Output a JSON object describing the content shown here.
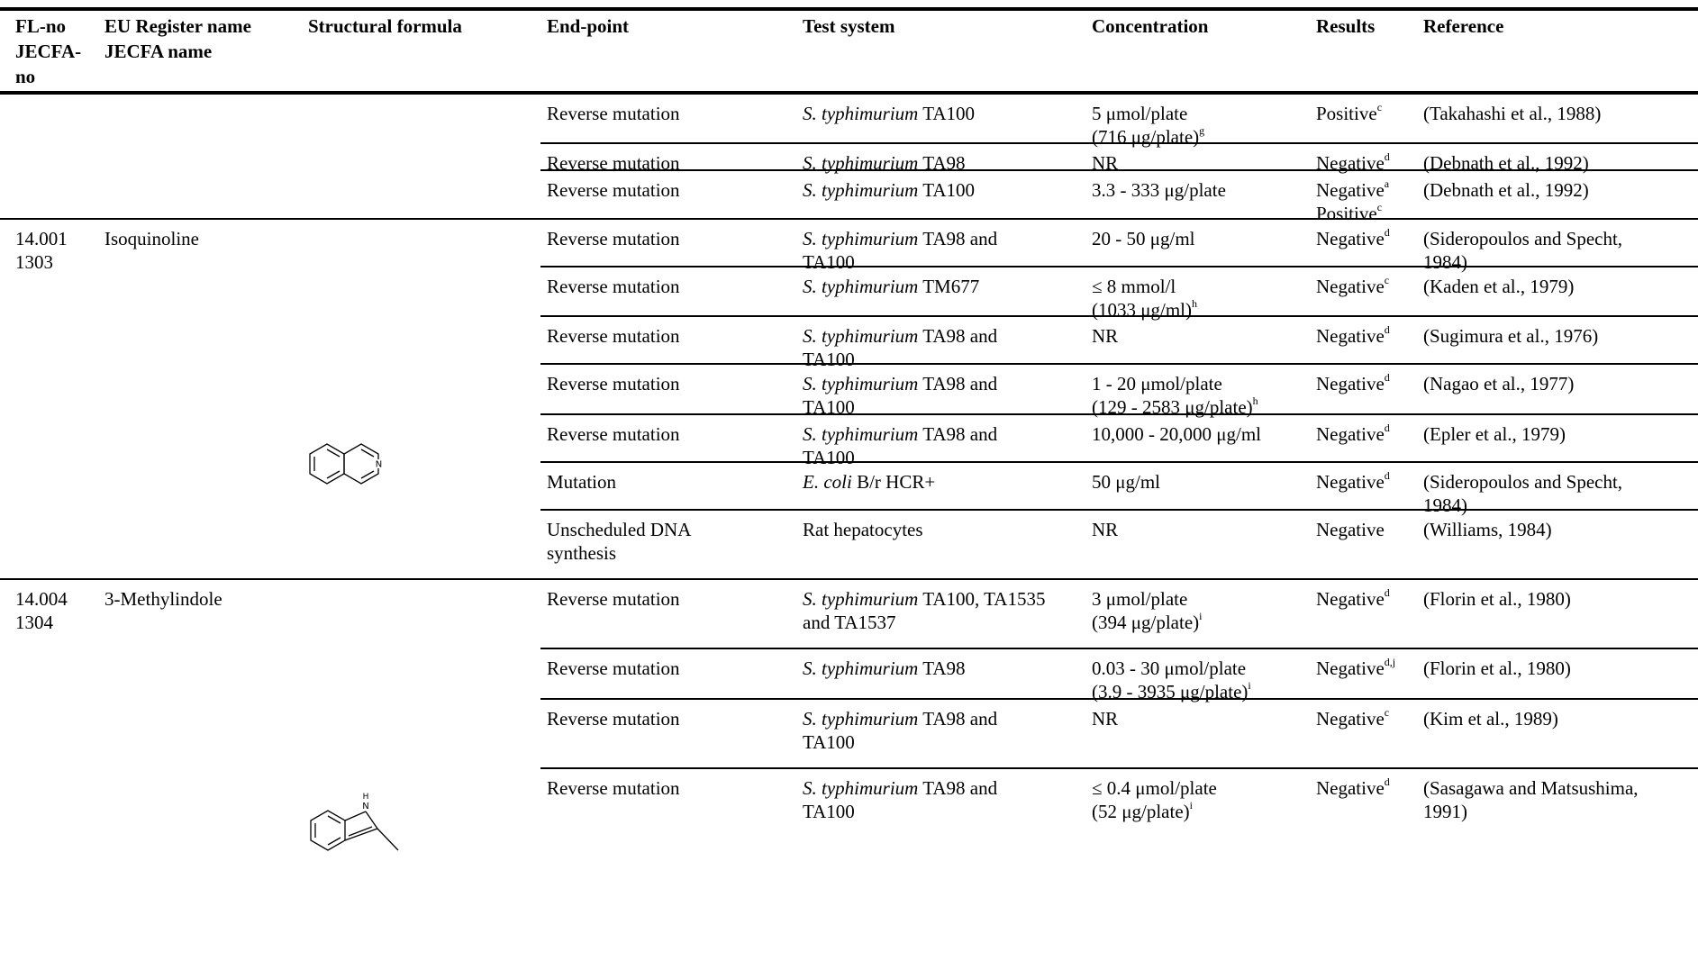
{
  "columns": {
    "flno": [
      "FL-no",
      "JECFA-",
      "no"
    ],
    "name": [
      "EU Register name",
      "JECFA name"
    ],
    "formula": "Structural formula",
    "endpoint": "End-point",
    "test_system": "Test system",
    "concentration": "Concentration",
    "results": "Results",
    "reference": "Reference"
  },
  "groups": [
    {
      "flno": "",
      "jecfa": "",
      "name": "",
      "rows": [
        {
          "endpoint": "Reverse mutation",
          "test_italic": "S. typhimurium",
          "test_rest": " TA100",
          "test_line2": "",
          "conc1": "5 μmol/plate",
          "conc2": "(716 μg/plate)",
          "conc2_sup": "g",
          "result1": "Positive",
          "result1_sup": "c",
          "result2": "",
          "result2_sup": "",
          "ref1": "(Takahashi et al., 1988)",
          "ref2": ""
        },
        {
          "endpoint": "Reverse mutation",
          "test_italic": "S. typhimurium",
          "test_rest": " TA98",
          "test_line2": "",
          "conc1": "NR",
          "conc2": "",
          "conc2_sup": "",
          "result1": "Negative",
          "result1_sup": "d",
          "result2": "",
          "result2_sup": "",
          "ref1": "(Debnath et al., 1992)",
          "ref2": ""
        },
        {
          "endpoint": "Reverse mutation",
          "test_italic": "S. typhimurium",
          "test_rest": " TA100",
          "test_line2": "",
          "conc1": "3.3 - 333 μg/plate",
          "conc2": "",
          "conc2_sup": "",
          "result1": "Negative",
          "result1_sup": "a",
          "result2": "Positive",
          "result2_sup": "c",
          "ref1": "(Debnath et al., 1992)",
          "ref2": ""
        }
      ]
    },
    {
      "flno": "14.001",
      "jecfa": "1303",
      "name": "Isoquinoline",
      "formula_icon": "isoquinoline-structure-icon",
      "rows": [
        {
          "endpoint": "Reverse mutation",
          "test_italic": "S. typhimurium",
          "test_rest": " TA98 and",
          "test_line2": "TA100",
          "conc1": "20 - 50 μg/ml",
          "conc2": "",
          "conc2_sup": "",
          "result1": "Negative",
          "result1_sup": "d",
          "result2": "",
          "result2_sup": "",
          "ref1": "(Sideropoulos and Specht,",
          "ref2": "1984)"
        },
        {
          "endpoint": "Reverse mutation",
          "test_italic": "S. typhimurium",
          "test_rest": " TM677",
          "test_line2": "",
          "conc1": "≤ 8 mmol/l",
          "conc2": "(1033 μg/ml)",
          "conc2_sup": "h",
          "result1": "Negative",
          "result1_sup": "c",
          "result2": "",
          "result2_sup": "",
          "ref1": "(Kaden et al., 1979)",
          "ref2": ""
        },
        {
          "endpoint": "Reverse mutation",
          "test_italic": "S. typhimurium",
          "test_rest": " TA98 and",
          "test_line2": "TA100",
          "conc1": "NR",
          "conc2": "",
          "conc2_sup": "",
          "result1": "Negative",
          "result1_sup": "d",
          "result2": "",
          "result2_sup": "",
          "ref1": "(Sugimura et al., 1976)",
          "ref2": ""
        },
        {
          "endpoint": "Reverse mutation",
          "test_italic": "S. typhimurium",
          "test_rest": " TA98 and",
          "test_line2": "TA100",
          "conc1": "1 - 20 μmol/plate",
          "conc2": "(129 - 2583 μg/plate)",
          "conc2_sup": "h",
          "result1": "Negative",
          "result1_sup": "d",
          "result2": "",
          "result2_sup": "",
          "ref1": "(Nagao et al., 1977)",
          "ref2": ""
        },
        {
          "endpoint": "Reverse mutation",
          "test_italic": "S. typhimurium",
          "test_rest": " TA98 and",
          "test_line2": "TA100",
          "conc1": "10,000 - 20,000 μg/ml",
          "conc2": "",
          "conc2_sup": "",
          "result1": "Negative",
          "result1_sup": "d",
          "result2": "",
          "result2_sup": "",
          "ref1": "(Epler et al., 1979)",
          "ref2": ""
        },
        {
          "endpoint": "Mutation",
          "test_italic": "E. coli",
          "test_rest": " B/r HCR+",
          "test_line2": "",
          "conc1": "50 μg/ml",
          "conc2": "",
          "conc2_sup": "",
          "result1": "Negative",
          "result1_sup": "d",
          "result2": "",
          "result2_sup": "",
          "ref1": "(Sideropoulos and Specht,",
          "ref2": "1984)"
        },
        {
          "endpoint": "Unscheduled DNA",
          "endpoint2": "synthesis",
          "test_italic": "",
          "test_rest": "Rat hepatocytes",
          "test_line2": "",
          "conc1": "NR",
          "conc2": "",
          "conc2_sup": "",
          "result1": "Negative",
          "result1_sup": "",
          "result2": "",
          "result2_sup": "",
          "ref1": "(Williams, 1984)",
          "ref2": ""
        }
      ]
    },
    {
      "flno": "14.004",
      "jecfa": "1304",
      "name": "3-Methylindole",
      "formula_icon": "3-methylindole-structure-icon",
      "rows": [
        {
          "endpoint": "Reverse mutation",
          "test_italic": "S. typhimurium",
          "test_rest": " TA100, TA1535",
          "test_line2": "and TA1537",
          "conc1": "3 μmol/plate",
          "conc2": "(394 μg/plate)",
          "conc2_sup": "i",
          "result1": "Negative",
          "result1_sup": "d",
          "result2": "",
          "result2_sup": "",
          "ref1": "(Florin et al., 1980)",
          "ref2": ""
        },
        {
          "endpoint": "Reverse mutation",
          "test_italic": "S. typhimurium",
          "test_rest": " TA98",
          "test_line2": "",
          "conc1": "0.03 - 30 μmol/plate",
          "conc2": "(3.9 - 3935 μg/plate)",
          "conc2_sup": "i",
          "result1": "Negative",
          "result1_sup": "d,j",
          "result2": "",
          "result2_sup": "",
          "ref1": "(Florin et al., 1980)",
          "ref2": ""
        },
        {
          "endpoint": "Reverse mutation",
          "test_italic": "S. typhimurium",
          "test_rest": " TA98 and",
          "test_line2": "TA100",
          "conc1": "NR",
          "conc2": "",
          "conc2_sup": "",
          "result1": "Negative",
          "result1_sup": "c",
          "result2": "",
          "result2_sup": "",
          "ref1": "(Kim et al., 1989)",
          "ref2": ""
        },
        {
          "endpoint": "Reverse mutation",
          "test_italic": "S. typhimurium",
          "test_rest": " TA98 and",
          "test_line2": "TA100",
          "conc1": "≤ 0.4 μmol/plate",
          "conc2": "(52 μg/plate)",
          "conc2_sup": "i",
          "result1": "Negative",
          "result1_sup": "d",
          "result2": "",
          "result2_sup": "",
          "ref1": "(Sasagawa and Matsushima,",
          "ref2": "1991)"
        }
      ]
    }
  ]
}
